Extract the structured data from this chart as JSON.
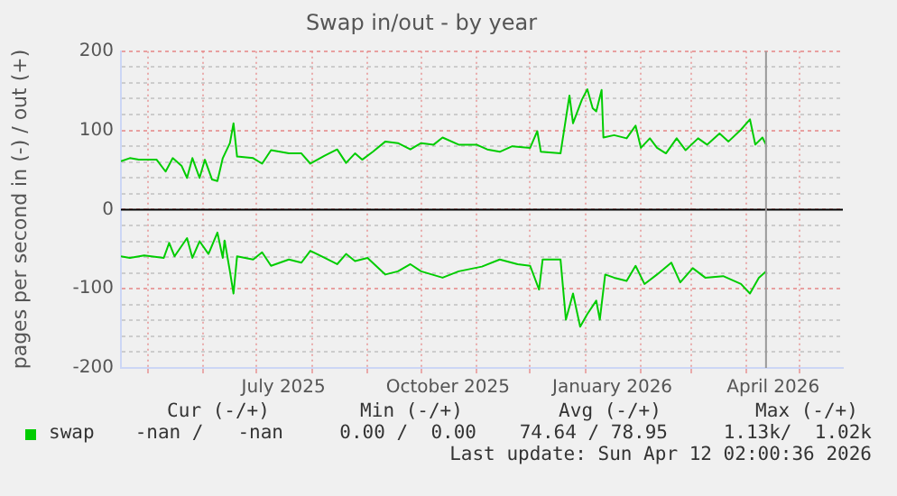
{
  "chart_data": {
    "type": "line",
    "title": "Swap in/out - by year",
    "ylabel": "pages per second in (-) / out (+)",
    "xlim": [
      "2025-04-16",
      "2026-05-25"
    ],
    "xticks": [
      {
        "value": "2025-05-01",
        "label": null
      },
      {
        "value": "2025-06-01",
        "label": null
      },
      {
        "value": "2025-07-01",
        "label": null
      },
      {
        "value": "2025-07-16",
        "label": "July 2025"
      },
      {
        "value": "2025-08-01",
        "label": null
      },
      {
        "value": "2025-09-01",
        "label": null
      },
      {
        "value": "2025-10-01",
        "label": null
      },
      {
        "value": "2025-10-16",
        "label": "October 2025"
      },
      {
        "value": "2025-11-01",
        "label": null
      },
      {
        "value": "2025-12-01",
        "label": null
      },
      {
        "value": "2026-01-01",
        "label": null
      },
      {
        "value": "2026-01-16",
        "label": "January 2026"
      },
      {
        "value": "2026-02-01",
        "label": null
      },
      {
        "value": "2026-03-01",
        "label": null
      },
      {
        "value": "2026-04-01",
        "label": null
      },
      {
        "value": "2026-04-16",
        "label": "April 2026"
      },
      {
        "value": "2026-05-01",
        "label": null
      }
    ],
    "ylim": [
      -200,
      200
    ],
    "yticks": [
      -200,
      {
        "value": -180,
        "label": null
      },
      {
        "value": -160,
        "label": null
      },
      {
        "value": -140,
        "label": null
      },
      {
        "value": -120,
        "label": null
      },
      -100,
      {
        "value": -80,
        "label": null
      },
      {
        "value": -60,
        "label": null
      },
      {
        "value": -40,
        "label": null
      },
      {
        "value": -20,
        "label": null
      },
      0,
      {
        "value": 20,
        "label": null
      },
      {
        "value": 40,
        "label": null
      },
      {
        "value": 60,
        "label": null
      },
      {
        "value": 80,
        "label": null
      },
      100,
      {
        "value": 120,
        "label": null
      },
      {
        "value": 140,
        "label": null
      },
      {
        "value": 160,
        "label": null
      },
      {
        "value": 180,
        "label": null
      },
      200
    ],
    "grid": true,
    "legend": "bottom left",
    "marker": "none",
    "line_style": "solid",
    "series": [
      {
        "name": "swap",
        "color": "#00cc00",
        "x": [
          "2025-04-16",
          "2025-04-21",
          "2025-04-26",
          "2025-05-06",
          "2025-05-11",
          "2025-05-15",
          "2025-05-20",
          "2025-05-23",
          "2025-05-26",
          "2025-05-30",
          "2025-06-02",
          "2025-06-06",
          "2025-06-09",
          "2025-06-12",
          "2025-06-16",
          "2025-06-18",
          "2025-06-20",
          "2025-06-29",
          "2025-07-04",
          "2025-07-09",
          "2025-07-19",
          "2025-07-26",
          "2025-07-31",
          "2025-08-08",
          "2025-08-15",
          "2025-08-20",
          "2025-08-25",
          "2025-08-29",
          "2025-09-04",
          "2025-09-11",
          "2025-09-18",
          "2025-09-25",
          "2025-10-01",
          "2025-10-08",
          "2025-10-13",
          "2025-10-22",
          "2025-11-01",
          "2025-11-07",
          "2025-11-14",
          "2025-11-21",
          "2025-12-01",
          "2025-12-05",
          "2025-12-07",
          "2025-12-18",
          "2025-12-23",
          "2025-12-25",
          "2025-12-30",
          "2026-01-02",
          "2026-01-05",
          "2026-01-07",
          "2026-01-10",
          "2026-01-11",
          "2026-01-17",
          "2026-01-24",
          "2026-01-29",
          "2026-02-01",
          "2026-02-06",
          "2026-02-10",
          "2026-02-15",
          "2026-02-21",
          "2026-02-26",
          "2026-03-05",
          "2026-03-10",
          "2026-03-17",
          "2026-03-22",
          "2026-03-29",
          "2026-04-03",
          "2026-04-06",
          "2026-04-10",
          "2026-04-12"
        ],
        "values": [
          61,
          65,
          63,
          63,
          48,
          65,
          55,
          40,
          65,
          40,
          63,
          38,
          36,
          65,
          84,
          109,
          67,
          65,
          58,
          75,
          71,
          71,
          58,
          68,
          76,
          59,
          71,
          63,
          73,
          86,
          84,
          76,
          84,
          82,
          91,
          82,
          82,
          76,
          73,
          80,
          78,
          99,
          73,
          71,
          144,
          109,
          139,
          152,
          128,
          124,
          151,
          91,
          94,
          90,
          106,
          78,
          90,
          78,
          71,
          90,
          75,
          90,
          82,
          96,
          86,
          101,
          114,
          82,
          91,
          82
        ]
      },
      {
        "color": "#00cc00",
        "x": [
          "2025-04-16",
          "2025-04-21",
          "2025-04-29",
          "2025-05-10",
          "2025-05-13",
          "2025-05-16",
          "2025-05-23",
          "2025-05-26",
          "2025-05-30",
          "2025-06-04",
          "2025-06-09",
          "2025-06-12",
          "2025-06-13",
          "2025-06-16",
          "2025-06-18",
          "2025-06-20",
          "2025-06-29",
          "2025-07-04",
          "2025-07-09",
          "2025-07-19",
          "2025-07-26",
          "2025-07-31",
          "2025-08-08",
          "2025-08-15",
          "2025-08-20",
          "2025-08-25",
          "2025-09-01",
          "2025-09-11",
          "2025-09-18",
          "2025-09-25",
          "2025-10-01",
          "2025-10-13",
          "2025-10-22",
          "2025-11-04",
          "2025-11-14",
          "2025-11-24",
          "2025-12-01",
          "2025-12-06",
          "2025-12-08",
          "2025-12-18",
          "2025-12-21",
          "2025-12-25",
          "2025-12-29",
          "2026-01-02",
          "2026-01-07",
          "2026-01-09",
          "2026-01-12",
          "2026-01-17",
          "2026-01-24",
          "2026-01-29",
          "2026-02-03",
          "2026-02-10",
          "2026-02-18",
          "2026-02-23",
          "2026-03-02",
          "2026-03-09",
          "2026-03-19",
          "2026-03-29",
          "2026-04-03",
          "2026-04-08",
          "2026-04-12"
        ],
        "values": [
          -59,
          -61,
          -58,
          -61,
          -42,
          -59,
          -36,
          -61,
          -40,
          -56,
          -29,
          -61,
          -39,
          -78,
          -106,
          -59,
          -63,
          -54,
          -71,
          -63,
          -67,
          -52,
          -61,
          -69,
          -56,
          -65,
          -61,
          -82,
          -78,
          -69,
          -78,
          -86,
          -78,
          -72,
          -63,
          -69,
          -71,
          -101,
          -63,
          -63,
          -139,
          -106,
          -148,
          -132,
          -115,
          -139,
          -82,
          -86,
          -90,
          -71,
          -94,
          -82,
          -67,
          -92,
          -74,
          -86,
          -84,
          -94,
          -106,
          -86,
          -78
        ]
      }
    ],
    "ref_lines": [
      {
        "axis": "y",
        "value": 0,
        "color": "#000000"
      },
      {
        "axis": "x",
        "value": "2026-04-12",
        "color": "#999999"
      }
    ],
    "annotations": [
      "Cur (-/+)",
      "Min (-/+)",
      "Avg (-/+)",
      "Max (-/+)",
      "-nan /   -nan",
      "0.00 /  0.00",
      "74.64 / 78.95",
      "1.13k/  1.02k",
      "Last update: Sun Apr 12 02:00:36 2026"
    ]
  }
}
